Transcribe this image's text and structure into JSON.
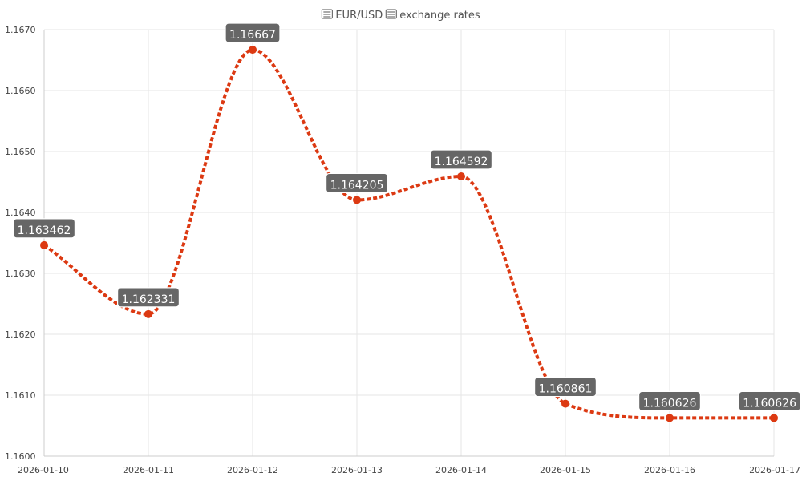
{
  "chart_data": {
    "type": "line",
    "title": "EUR/USD exchange rates",
    "title_icons": [
      "eu-flag-icon",
      "us-flag-icon"
    ],
    "x": [
      "2026-01-10",
      "2026-01-11",
      "2026-01-12",
      "2026-01-13",
      "2026-01-14",
      "2026-01-15",
      "2026-01-16",
      "2026-01-17"
    ],
    "series": [
      {
        "values": [
          1.163462,
          1.162331,
          1.16667,
          1.164205,
          1.164592,
          1.160861,
          1.160626,
          1.160626
        ],
        "data_labels": [
          "1.163462",
          "1.162331",
          "1.16667",
          "1.164205",
          "1.164592",
          "1.160861",
          "1.160626",
          "1.160626"
        ],
        "color": "#dc3912",
        "line_style": "dotted",
        "smooth": true
      }
    ],
    "ylim": [
      1.16,
      1.167
    ],
    "yticks": [
      "1.1600",
      "1.1610",
      "1.1620",
      "1.1630",
      "1.1640",
      "1.1650",
      "1.1660",
      "1.1670"
    ],
    "grid": true,
    "legend": "none"
  },
  "colors": {
    "series": "#dc3912",
    "label_background": "#666666",
    "grid": "#e6e6e6"
  }
}
